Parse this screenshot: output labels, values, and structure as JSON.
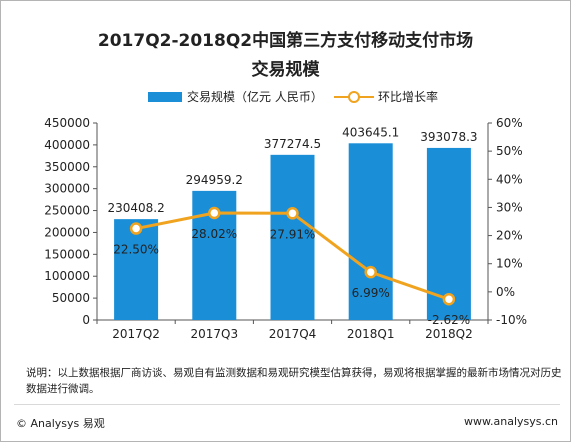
{
  "chart_data": {
    "type": "bar",
    "title": "2017Q2-2018Q2中国第三方支付移动支付市场",
    "subtitle": "交易规模",
    "categories": [
      "2017Q2",
      "2017Q3",
      "2017Q4",
      "2018Q1",
      "2018Q2"
    ],
    "series": [
      {
        "name": "交易规模（亿元 人民币）",
        "type": "bar",
        "axis": "left",
        "color": "#1a8fd8",
        "values": [
          230408.2,
          294959.2,
          377274.5,
          403645.1,
          393078.3
        ],
        "labels": [
          "230408.2",
          "294959.2",
          "377274.5",
          "403645.1",
          "393078.3"
        ]
      },
      {
        "name": "环比增长率",
        "type": "line",
        "axis": "right",
        "color": "#f0a31e",
        "values": [
          22.5,
          28.02,
          27.91,
          6.99,
          -2.62
        ],
        "labels": [
          "22.50%",
          "28.02%",
          "27.91%",
          "6.99%",
          "-2.62%"
        ]
      }
    ],
    "y_left": {
      "range": [
        0,
        450000
      ],
      "ticks": [
        "0",
        "50000",
        "100000",
        "150000",
        "200000",
        "250000",
        "300000",
        "350000",
        "400000",
        "450000"
      ]
    },
    "y_right": {
      "range": [
        -10,
        60
      ],
      "ticks": [
        "-10%",
        "0%",
        "10%",
        "20%",
        "30%",
        "40%",
        "50%",
        "60%"
      ]
    },
    "grid": false,
    "legend_position": "top"
  },
  "footnote": "说明：以上数据根据厂商访谈、易观自有监测数据和易观研究模型估算获得，易观将根据掌握的最新市场情况对历史数据进行微调。",
  "copyright": "© Analysys 易观",
  "site_url": "www.analysys.cn"
}
